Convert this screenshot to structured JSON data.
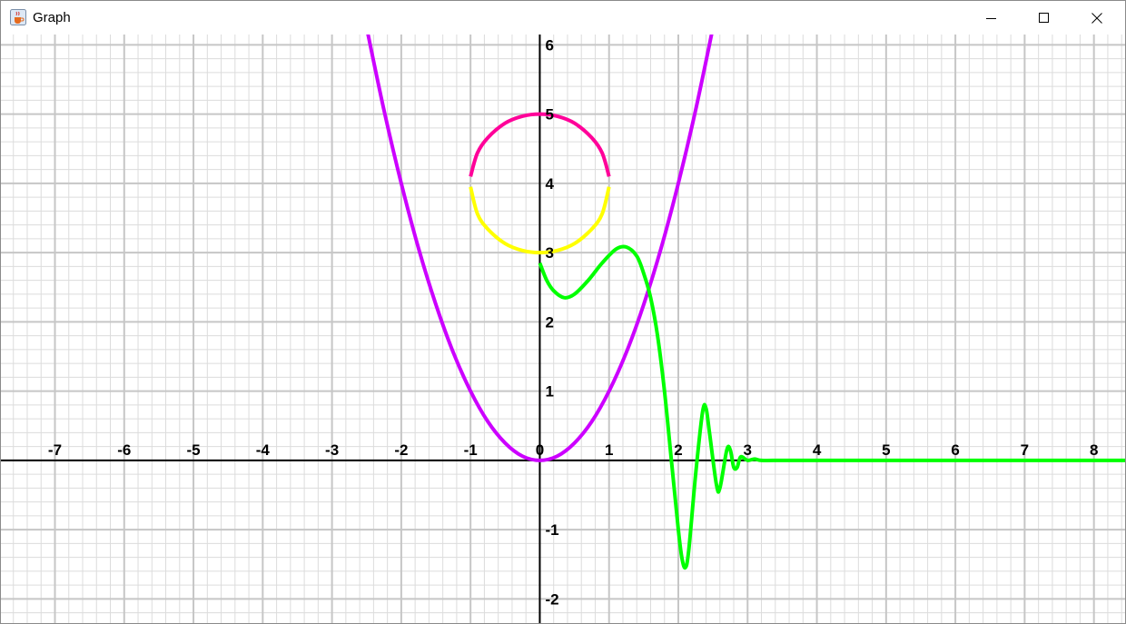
{
  "window": {
    "title": "Graph",
    "icon": "java-cup-icon",
    "controls": [
      "minimize-icon",
      "maximize-icon",
      "close-icon"
    ]
  },
  "chart_data": {
    "type": "line",
    "xlim": [
      -7.78,
      8.45
    ],
    "ylim": [
      -2.35,
      6.15
    ],
    "grid": true,
    "x_ticks": [
      "-7",
      "-6",
      "-5",
      "-4",
      "-3",
      "-2",
      "-1",
      "0",
      "1",
      "2",
      "3",
      "4",
      "5",
      "6",
      "7",
      "8"
    ],
    "y_ticks": [
      "-2",
      "-1",
      "1",
      "2",
      "3",
      "4",
      "5",
      "6"
    ],
    "colors": {
      "parabola": "#cc00ff",
      "circle_upper": "#ff0099",
      "circle_lower": "#ffff00",
      "oscillation": "#00ff00",
      "grid_major": "#c6c6c6",
      "grid_minor": "#dcdcdc",
      "axes": "#000000"
    },
    "series": [
      {
        "key": "parabola",
        "color": "#cc00ff",
        "x": [
          -2.5,
          -2.25,
          -2,
          -1.75,
          -1.5,
          -1.25,
          -1,
          -0.75,
          -0.5,
          -0.25,
          0,
          0.25,
          0.5,
          0.75,
          1,
          1.25,
          1.5,
          1.75,
          2,
          2.25,
          2.5
        ],
        "y": [
          6.25,
          5.06,
          4,
          3.06,
          2.25,
          1.56,
          1,
          0.56,
          0.25,
          0.06,
          0,
          0.06,
          0.25,
          0.56,
          1,
          1.56,
          2.25,
          3.06,
          4,
          5.06,
          6.25
        ]
      },
      {
        "key": "circle_upper",
        "color": "#ff0099",
        "x": [
          -1,
          -0.9,
          -0.75,
          -0.5,
          -0.25,
          0,
          0.25,
          0.5,
          0.75,
          0.9,
          1
        ],
        "y": [
          4.1,
          4.44,
          4.66,
          4.87,
          4.97,
          5,
          4.97,
          4.87,
          4.66,
          4.44,
          4.1
        ]
      },
      {
        "key": "circle_lower",
        "color": "#ffff00",
        "x": [
          -1,
          -0.9,
          -0.75,
          -0.5,
          -0.25,
          0,
          0.25,
          0.5,
          0.75,
          0.9,
          1
        ],
        "y": [
          3.95,
          3.56,
          3.34,
          3.13,
          3.03,
          3,
          3.03,
          3.13,
          3.34,
          3.56,
          3.95
        ]
      },
      {
        "key": "oscillation",
        "color": "#00ff00",
        "x": [
          0,
          0.1,
          0.2,
          0.35,
          0.5,
          0.7,
          0.9,
          1.1,
          1.25,
          1.4,
          1.5,
          1.6,
          1.7,
          1.8,
          1.9,
          2.0,
          2.05,
          2.1,
          2.15,
          2.25,
          2.35,
          2.4,
          2.45,
          2.55,
          2.6,
          2.7,
          2.75,
          2.8,
          2.85,
          2.9,
          3.0,
          3.1,
          3.2,
          3.5,
          4.0,
          5.0,
          6.0,
          7.0,
          8.0,
          8.45
        ],
        "y": [
          2.85,
          2.6,
          2.45,
          2.35,
          2.4,
          2.6,
          2.85,
          3.05,
          3.08,
          2.95,
          2.7,
          2.35,
          1.8,
          1.0,
          0.0,
          -1.0,
          -1.4,
          -1.55,
          -1.3,
          -0.2,
          0.7,
          0.75,
          0.4,
          -0.35,
          -0.4,
          0.15,
          0.15,
          -0.1,
          -0.1,
          0.05,
          0.0,
          0.02,
          0.0,
          0.0,
          0.0,
          0.0,
          0.0,
          0.0,
          0.0,
          0.0
        ]
      }
    ]
  }
}
